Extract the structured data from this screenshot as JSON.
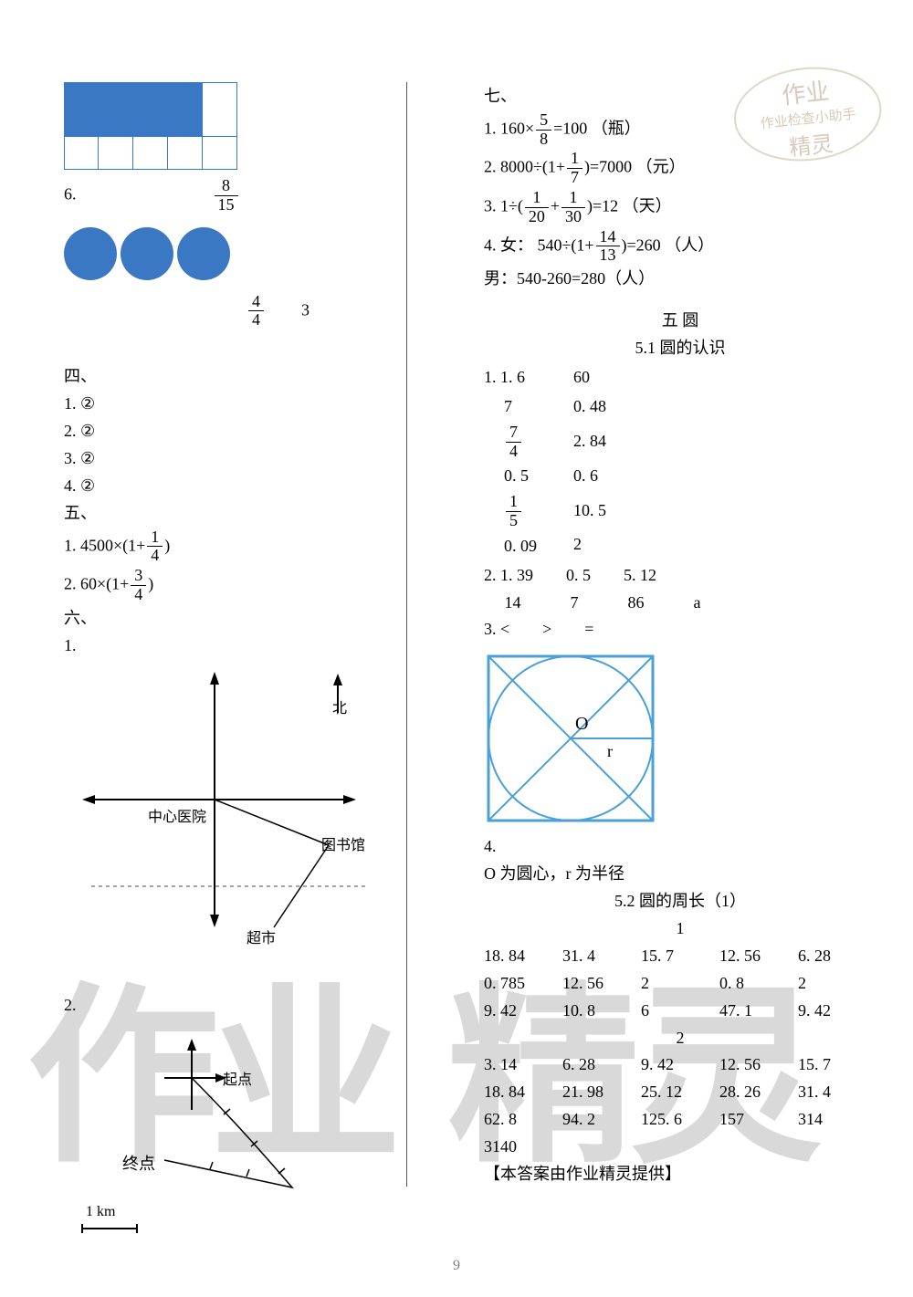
{
  "page_number": "9",
  "stamp": {
    "l1": "作业",
    "l2": "作业检查小助手",
    "l3": "精灵"
  },
  "left": {
    "q6_label": "6.",
    "q6_frac1": {
      "n": "8",
      "d": "15"
    },
    "q6_frac2": {
      "n": "4",
      "d": "4"
    },
    "q6_extra": "3",
    "grid_color": "#3a78c3",
    "circle_color": "#3a78c3",
    "sec4": "四、",
    "s4_1": "1. ②",
    "s4_2": "2. ②",
    "s4_3": "3. ②",
    "s4_4": "4. ②",
    "sec5": "五、",
    "s5_1_pre": "1. 4500×(1+",
    "s5_1_frac": {
      "n": "1",
      "d": "4"
    },
    "s5_1_post": ")",
    "s5_2_pre": "2. 60×(1+",
    "s5_2_frac": {
      "n": "3",
      "d": "4"
    },
    "s5_2_post": ")",
    "sec6": "六、",
    "s6_1": "1.",
    "s6_2": "2.",
    "map": {
      "north": "北",
      "hospital": "中心医院",
      "library": "图书馆",
      "market": "超市"
    },
    "arrow": {
      "start": "起点",
      "end": "终点",
      "scale": "1 km"
    }
  },
  "right": {
    "sec7": "七、",
    "q1_pre": "1. 160×",
    "q1_frac": {
      "n": "5",
      "d": "8"
    },
    "q1_post": "=100 （瓶）",
    "q2_pre": "2. 8000÷(1+",
    "q2_frac": {
      "n": "1",
      "d": "7"
    },
    "q2_post": ")=7000 （元）",
    "q3_pre": "3. 1÷(",
    "q3_f1": {
      "n": "1",
      "d": "20"
    },
    "q3_plus": "+",
    "q3_f2": {
      "n": "1",
      "d": "30"
    },
    "q3_post": ")=12 （天）",
    "q4_pre": "4. 女： 540÷(1+",
    "q4_frac": {
      "n": "14",
      "d": "13"
    },
    "q4_post": ")=260 （人）",
    "q4b": "男：540-260=280（人）",
    "ch5_title": "五 圆",
    "ch5_1_title": "5.1 圆的认识",
    "t1": {
      "row0": [
        "1. 1. 6",
        "60"
      ],
      "row1": [
        "7",
        "0. 48"
      ],
      "row2_frac": {
        "n": "7",
        "d": "4"
      },
      "row2_b": "2. 84",
      "row3": [
        "0. 5",
        "0. 6"
      ],
      "row4_frac": {
        "n": "1",
        "d": "5"
      },
      "row4_b": "10. 5",
      "row5": [
        "0. 09",
        "2"
      ]
    },
    "t2_row0": "2. 1. 39　　0. 5　　5. 12",
    "t2_row1": "　 14　　　7　　　86　　　a",
    "t3": "3. <　　>　　=",
    "circle_diag": {
      "o": "O",
      "r": "r",
      "stroke": "#4aa0d8"
    },
    "s4_lbl": "4.",
    "s4_txt": "O 为圆心，r 为半径",
    "ch5_2_title": "5.2 圆的周长（1）",
    "sub1": "1",
    "tbl1": {
      "r0": [
        "18. 84",
        "31. 4",
        "15. 7",
        "12. 56",
        "6. 28"
      ],
      "r1": [
        "0. 785",
        "12. 56",
        "2",
        "0. 8",
        "2"
      ],
      "r2": [
        "9. 42",
        "10. 8",
        "6",
        "47. 1",
        "9. 42"
      ]
    },
    "sub2": "2",
    "tbl2": {
      "r0": [
        "3. 14",
        "6. 28",
        "9. 42",
        "12. 56",
        "15. 7"
      ],
      "r1": [
        "18. 84",
        "21. 98",
        "25. 12",
        "28. 26",
        "31. 4"
      ],
      "r2": [
        "62. 8",
        "94. 2",
        "125. 6",
        "157",
        "314"
      ],
      "r3": [
        "3140",
        "",
        "",
        "",
        ""
      ]
    },
    "footer": "【本答案由作业精灵提供】"
  }
}
